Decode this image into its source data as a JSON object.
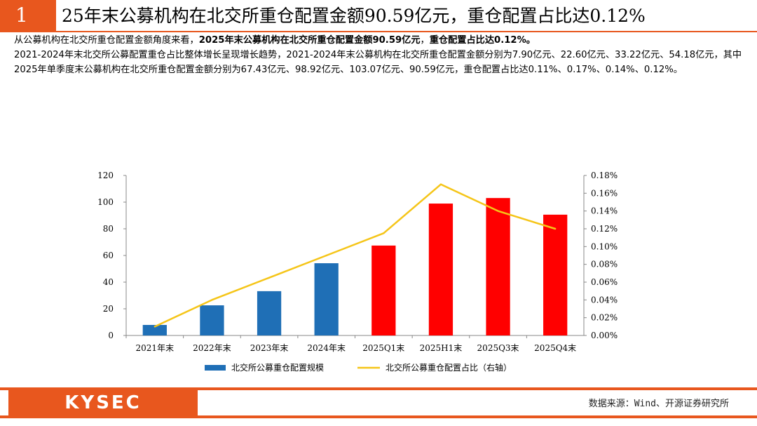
{
  "header": {
    "number": "1",
    "title": "25年末公募机构在北交所重仓配置金额90.59亿元，重仓配置占比达0.12%"
  },
  "body": {
    "p1_a": "从公募机构在北交所重仓配置金额角度来看，",
    "p1_b": "2025年末公募机构在北交所重仓配置金额90.59亿元",
    "p1_c": "，",
    "p1_d": "重仓配置占比达0.12%。",
    "p2": "2021-2024年末北交所公募配置重仓占比整体增长呈现增长趋势，2021-2024年末公募机构在北交所重仓配置金额分别为7.90亿元、22.60亿元、33.22亿元、54.18亿元，其中2025年单季度末公募机构在北交所重仓配置金额分别为67.43亿元、98.92亿元、103.07亿元、90.59亿元，重仓配置占比达0.11%、0.17%、0.14%、0.12%。"
  },
  "chart_data": {
    "type": "bar",
    "categories": [
      "2021年末",
      "2022年末",
      "2023年末",
      "2024年末",
      "2025Q1末",
      "2025H1末",
      "2025Q3末",
      "2025Q4末"
    ],
    "series": [
      {
        "name": "北交所公募重仓配置规模",
        "type": "bar",
        "axis": "left",
        "values": [
          7.9,
          22.6,
          33.22,
          54.18,
          67.43,
          98.92,
          103.07,
          90.59
        ],
        "colors": [
          "#1f6fb6",
          "#1f6fb6",
          "#1f6fb6",
          "#1f6fb6",
          "#ff0000",
          "#ff0000",
          "#ff0000",
          "#ff0000"
        ]
      },
      {
        "name": "北交所公募重仓配置占比（右轴）",
        "type": "line",
        "axis": "right",
        "values": [
          0.0001,
          0.0004,
          0.00065,
          0.0009,
          0.00115,
          0.0017,
          0.0014,
          0.0012
        ],
        "color": "#f5c518"
      }
    ],
    "y_left": {
      "lim": [
        0,
        120
      ],
      "ticks": [
        "0",
        "20",
        "40",
        "60",
        "80",
        "100",
        "120"
      ]
    },
    "y_right": {
      "lim": [
        0,
        0.0018
      ],
      "ticks": [
        "0.00%",
        "0.02%",
        "0.04%",
        "0.06%",
        "0.08%",
        "0.10%",
        "0.12%",
        "0.14%",
        "0.16%",
        "0.18%"
      ]
    },
    "legend_position": "bottom"
  },
  "footer": {
    "logo": "KYSEC",
    "source": "数据来源：Wind、开源证券研究所"
  },
  "colors": {
    "accent": "#e8571e",
    "bar_blue": "#1f6fb6",
    "bar_red": "#ff0000",
    "line": "#f5c518"
  }
}
